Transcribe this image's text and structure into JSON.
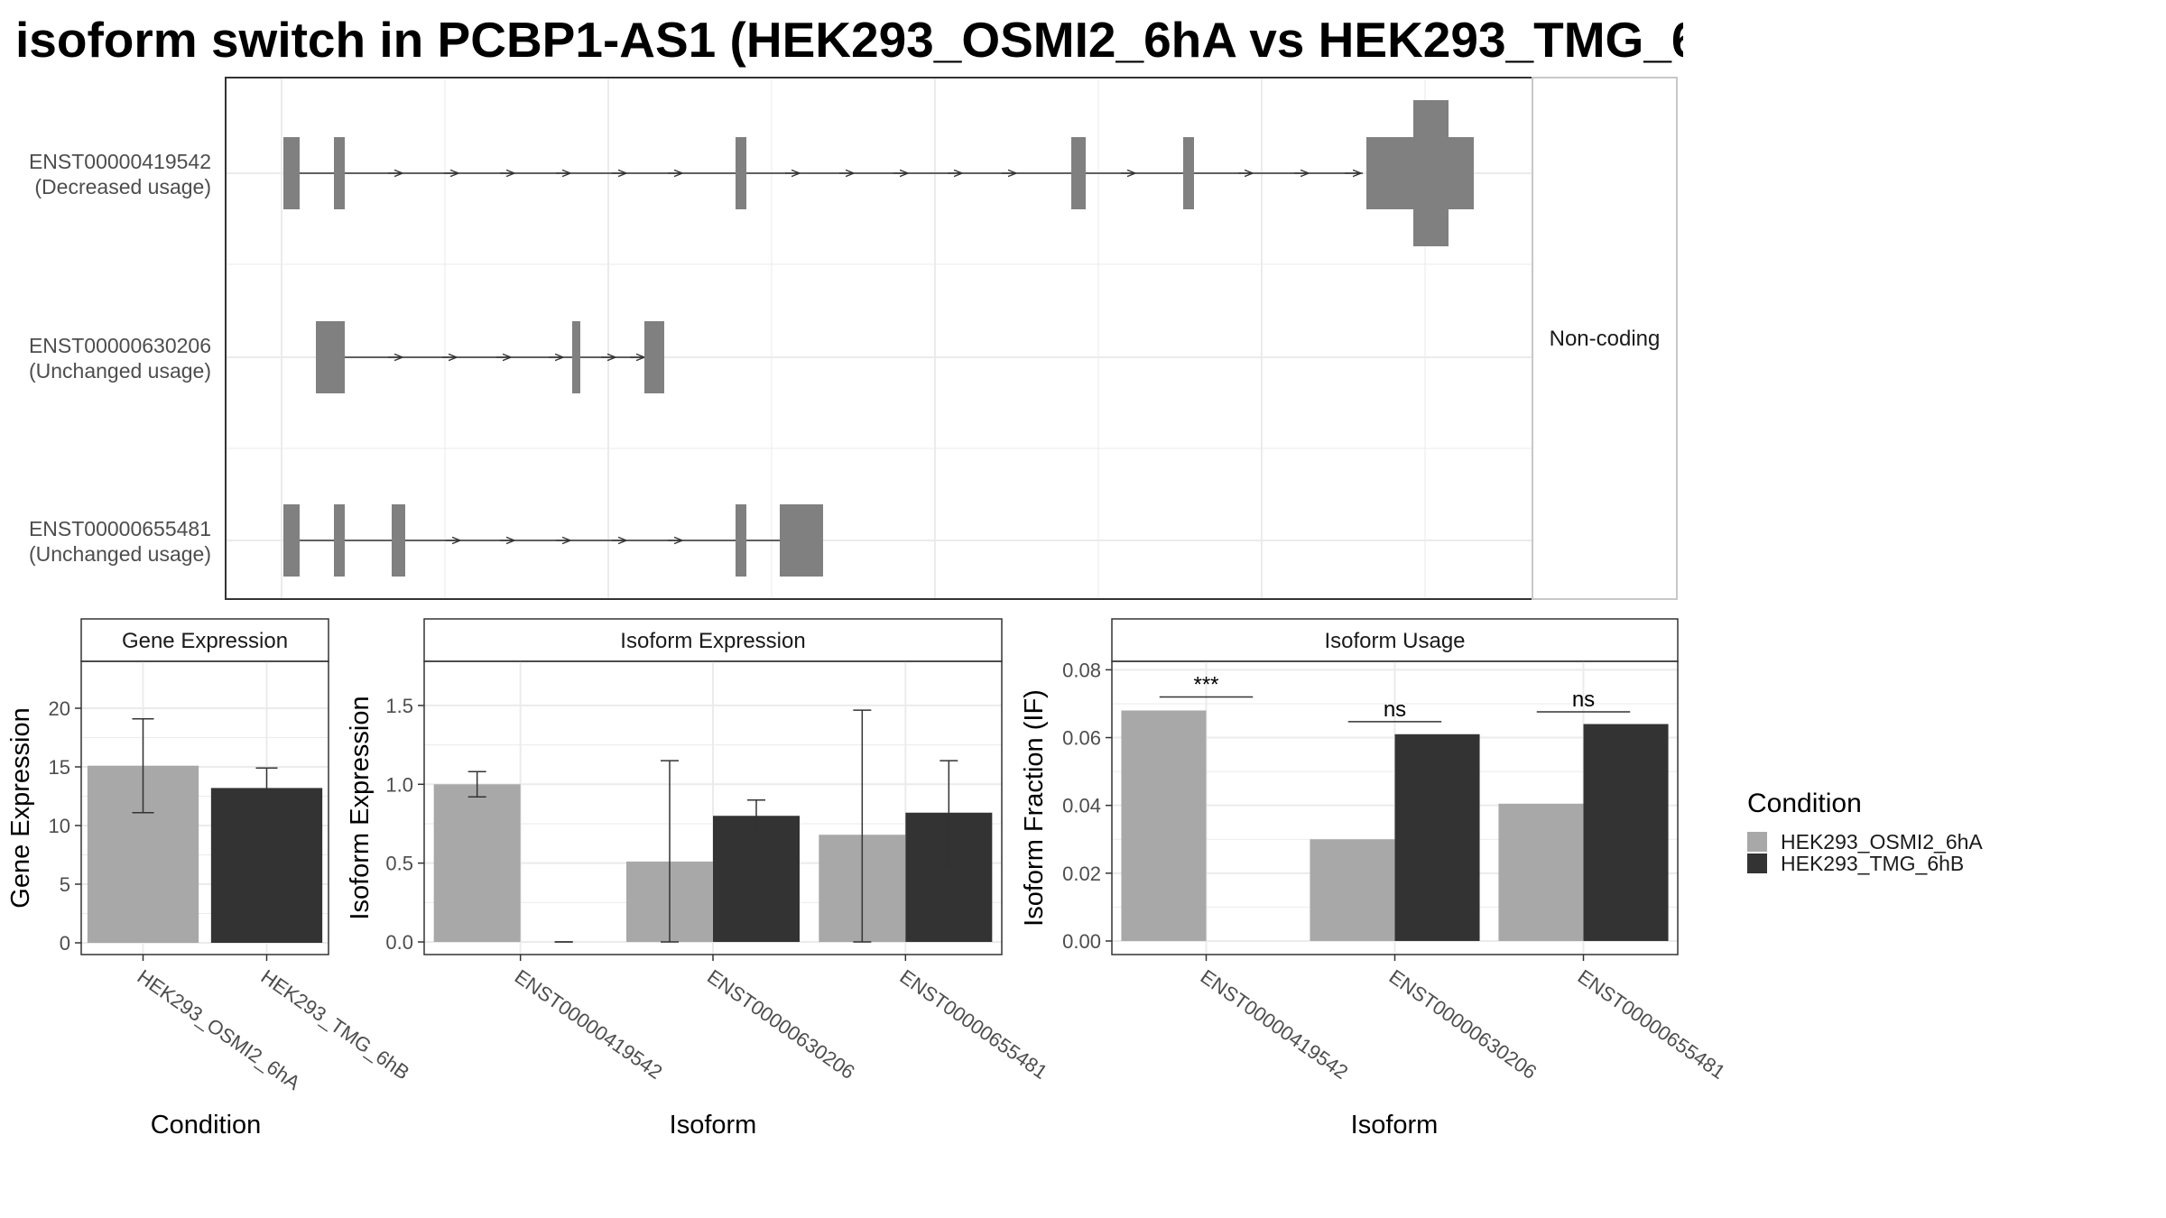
{
  "title": "isoform switch in PCBP1-AS1 (HEK293_OSMI2_6hA vs HEK293_TMG_6",
  "colors": {
    "cond_a": "#a8a8a8",
    "cond_b": "#333333",
    "exon": "#808080",
    "grid": "#ebebeb",
    "frame": "#333333"
  },
  "chart_data": [
    {
      "type": "gene-structure",
      "panel": "transcript-structure",
      "strip_label": "Non-coding",
      "transcripts": [
        {
          "id": "ENST00000419542",
          "usage": "(Decreased usage)"
        },
        {
          "id": "ENST00000630206",
          "usage": "(Unchanged usage)"
        },
        {
          "id": "ENST00000655481",
          "usage": "(Unchanged usage)"
        }
      ]
    },
    {
      "type": "bar",
      "strip": "Gene Expression",
      "xlabel": "Condition",
      "ylabel": "Gene Expression",
      "ylim": [
        -1,
        24
      ],
      "yticks": [
        0,
        5,
        10,
        15,
        20
      ],
      "categories": [
        "HEK293_OSMI2_6hA",
        "HEK293_TMG_6hB"
      ],
      "values": [
        15.1,
        13.2
      ],
      "error_low": [
        11.1,
        11.6
      ],
      "error_high": [
        19.1,
        14.9
      ]
    },
    {
      "type": "bar",
      "strip": "Isoform Expression",
      "xlabel": "Isoform",
      "ylabel": "Isoform Expression",
      "ylim": [
        -0.08,
        1.78
      ],
      "yticks": [
        0.0,
        0.5,
        1.0,
        1.5
      ],
      "ytick_labels": [
        "0.0",
        "0.5",
        "1.0",
        "1.5"
      ],
      "categories": [
        "ENST00000419542",
        "ENST00000630206",
        "ENST00000655481"
      ],
      "series": [
        {
          "name": "HEK293_OSMI2_6hA",
          "values": [
            1.0,
            0.51,
            0.68
          ],
          "error_low": [
            0.92,
            0.0,
            0.0
          ],
          "error_high": [
            1.08,
            1.15,
            1.47
          ]
        },
        {
          "name": "HEK293_TMG_6hB",
          "values": [
            0.0,
            0.8,
            0.82
          ],
          "error_low": [
            0.0,
            0.7,
            0.48
          ],
          "error_high": [
            0.0,
            0.9,
            1.15
          ]
        }
      ]
    },
    {
      "type": "bar",
      "strip": "Isoform Usage",
      "xlabel": "Isoform",
      "ylabel": "Isoform Fraction (IF)",
      "ylim": [
        -0.004,
        0.0825
      ],
      "yticks": [
        0.0,
        0.02,
        0.04,
        0.06,
        0.08
      ],
      "ytick_labels": [
        "0.00",
        "0.02",
        "0.04",
        "0.06",
        "0.08"
      ],
      "categories": [
        "ENST00000419542",
        "ENST00000630206",
        "ENST00000655481"
      ],
      "series": [
        {
          "name": "HEK293_OSMI2_6hA",
          "values": [
            0.068,
            0.03,
            0.0405
          ]
        },
        {
          "name": "HEK293_TMG_6hB",
          "values": [
            0.0,
            0.061,
            0.064
          ]
        }
      ],
      "significance": [
        {
          "label": "***",
          "y": 0.072
        },
        {
          "label": "ns",
          "y": 0.0647
        },
        {
          "label": "ns",
          "y": 0.0676
        }
      ]
    }
  ],
  "legend": {
    "title": "Condition",
    "items": [
      "HEK293_OSMI2_6hA",
      "HEK293_TMG_6hB"
    ]
  }
}
